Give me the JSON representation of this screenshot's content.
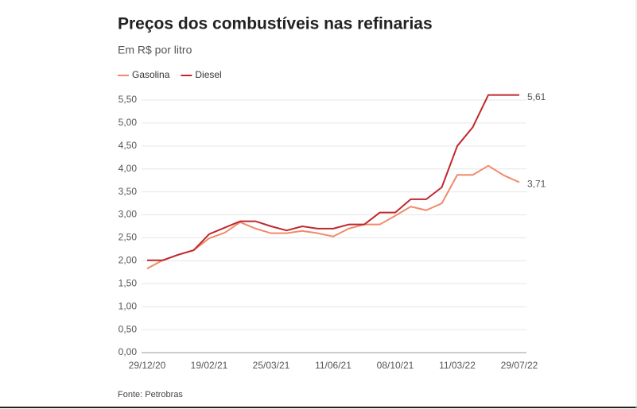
{
  "chart_data": {
    "type": "line",
    "title": "Preços dos combustíveis nas refinarias",
    "subtitle": "Em R$ por litro",
    "source": "Fonte: Petrobras",
    "legend": "top-left",
    "grid": true,
    "categories": [
      "29/12/20",
      null,
      null,
      null,
      "19/02/21",
      null,
      null,
      null,
      "25/03/21",
      null,
      null,
      null,
      "11/06/21",
      null,
      null,
      null,
      "08/10/21",
      null,
      null,
      null,
      "11/03/22",
      null,
      null,
      null,
      "29/07/22"
    ],
    "series": [
      {
        "name": "Gasolina",
        "color": "#f08a6a",
        "values": [
          1.83,
          2.01,
          2.13,
          2.23,
          2.49,
          2.61,
          2.84,
          2.7,
          2.6,
          2.6,
          2.65,
          2.6,
          2.53,
          2.7,
          2.79,
          2.79,
          2.98,
          3.18,
          3.1,
          3.25,
          3.87,
          3.87,
          4.07,
          3.86,
          3.71
        ],
        "value_labels": [
          null,
          null,
          null,
          null,
          null,
          null,
          null,
          null,
          null,
          null,
          null,
          null,
          null,
          null,
          null,
          null,
          null,
          null,
          null,
          null,
          null,
          null,
          null,
          null,
          "3,71"
        ]
      },
      {
        "name": "Diesel",
        "color": "#c0272d",
        "values": [
          2.01,
          2.01,
          2.13,
          2.23,
          2.58,
          2.72,
          2.86,
          2.86,
          2.75,
          2.66,
          2.75,
          2.7,
          2.7,
          2.79,
          2.79,
          3.05,
          3.05,
          3.34,
          3.34,
          3.6,
          4.5,
          4.91,
          5.61,
          5.61,
          5.61
        ],
        "value_labels": [
          null,
          null,
          null,
          null,
          null,
          null,
          null,
          null,
          null,
          null,
          null,
          null,
          null,
          null,
          null,
          null,
          null,
          null,
          null,
          null,
          null,
          null,
          null,
          null,
          "5,61"
        ]
      }
    ],
    "ylim": [
      0,
      5.5
    ],
    "yticks": [
      {
        "value": 0,
        "label": "0,00"
      },
      {
        "value": 0.5,
        "label": "0,50"
      },
      {
        "value": 1,
        "label": "1,00"
      },
      {
        "value": 1.5,
        "label": "1,50"
      },
      {
        "value": 2,
        "label": "2,00"
      },
      {
        "value": 2.5,
        "label": "2,50"
      },
      {
        "value": 3,
        "label": "3,00"
      },
      {
        "value": 3.5,
        "label": "3,50"
      },
      {
        "value": 4,
        "label": "4,00"
      },
      {
        "value": 4.5,
        "label": "4,50"
      },
      {
        "value": 5,
        "label": "5,00"
      },
      {
        "value": 5.5,
        "label": "5,50"
      }
    ]
  }
}
